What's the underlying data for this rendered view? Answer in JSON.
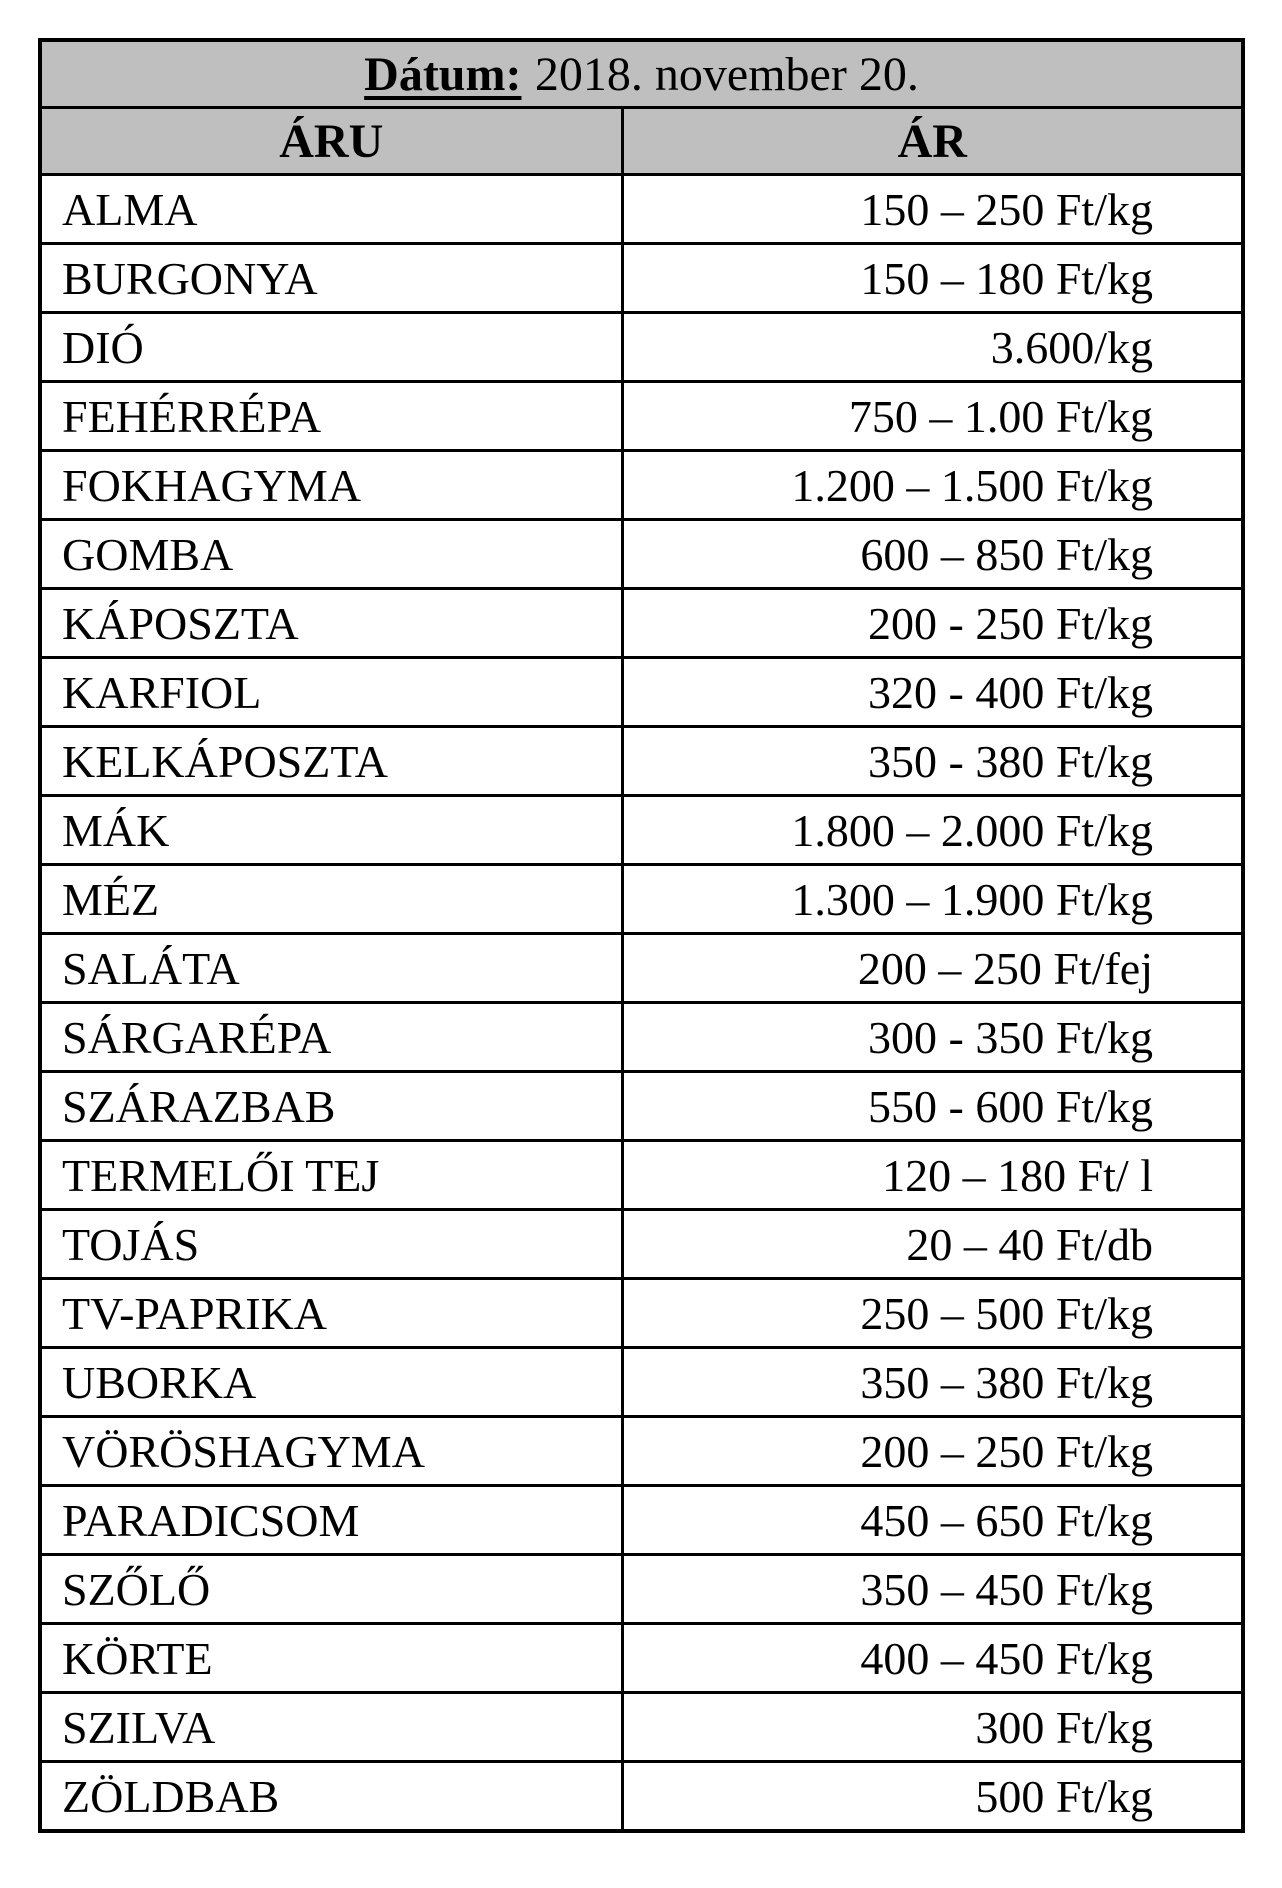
{
  "table": {
    "date_label": "Dátum:",
    "date_value": "2018. november 20.",
    "columns": [
      "ÁRU",
      "ÁR"
    ],
    "header_bg": "#bfbfbf",
    "border_color": "#000000",
    "rows": [
      {
        "name": "ALMA",
        "price": "150 – 250 Ft/kg"
      },
      {
        "name": "BURGONYA",
        "price": "150 – 180 Ft/kg"
      },
      {
        "name": "DIÓ",
        "price": "3.600/kg"
      },
      {
        "name": "FEHÉRRÉPA",
        "price": "750 – 1.00 Ft/kg"
      },
      {
        "name": "FOKHAGYMA",
        "price": "1.200 – 1.500 Ft/kg"
      },
      {
        "name": "GOMBA",
        "price": "600 – 850 Ft/kg"
      },
      {
        "name": "KÁPOSZTA",
        "price": "200 - 250 Ft/kg"
      },
      {
        "name": "KARFIOL",
        "price": "320 - 400 Ft/kg"
      },
      {
        "name": "KELKÁPOSZTA",
        "price": "350 - 380 Ft/kg"
      },
      {
        "name": "MÁK",
        "price": "1.800 – 2.000 Ft/kg"
      },
      {
        "name": "MÉZ",
        "price": "1.300 – 1.900 Ft/kg"
      },
      {
        "name": "SALÁTA",
        "price": "200 – 250 Ft/fej"
      },
      {
        "name": "SÁRGARÉPA",
        "price": "300 - 350 Ft/kg"
      },
      {
        "name": "SZÁRAZBAB",
        "price": "550 - 600 Ft/kg"
      },
      {
        "name": "TERMELŐI TEJ",
        "price": "120 – 180 Ft/ l"
      },
      {
        "name": "TOJÁS",
        "price": "20 – 40 Ft/db"
      },
      {
        "name": "TV-PAPRIKA",
        "price": "250 – 500 Ft/kg"
      },
      {
        "name": "UBORKA",
        "price": "350 – 380 Ft/kg"
      },
      {
        "name": "VÖRÖSHAGYMA",
        "price": "200 – 250 Ft/kg"
      },
      {
        "name": "PARADICSOM",
        "price": "450 – 650 Ft/kg"
      },
      {
        "name": "SZŐLŐ",
        "price": "350 – 450 Ft/kg"
      },
      {
        "name": "KÖRTE",
        "price": "400 – 450 Ft/kg"
      },
      {
        "name": "SZILVA",
        "price": "300 Ft/kg"
      },
      {
        "name": "ZÖLDBAB",
        "price": "500 Ft/kg"
      }
    ]
  }
}
